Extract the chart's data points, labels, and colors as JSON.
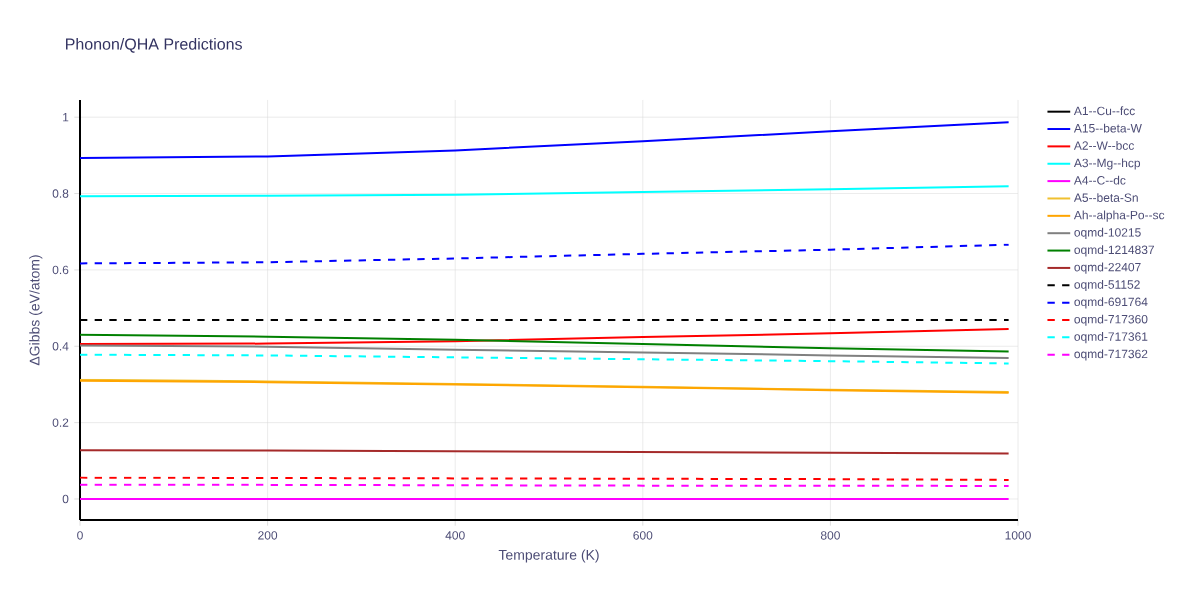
{
  "chart_data": {
    "type": "line",
    "title": "Phonon/QHA Predictions",
    "xlabel": "Temperature (K)",
    "ylabel": "ΔGibbs (eV/atom)",
    "x": [
      0,
      200,
      400,
      600,
      800,
      990
    ],
    "series": [
      {
        "name": "A1--Cu--fcc",
        "color": "#000000",
        "values": [
          null,
          null,
          null,
          null,
          null,
          null
        ]
      },
      {
        "name": "A15--beta-W",
        "color": "#0000ff",
        "values": [
          0.893,
          0.897,
          0.913,
          0.937,
          0.963,
          0.987
        ]
      },
      {
        "name": "A2--W--bcc",
        "color": "#ff0000",
        "values": [
          0.406,
          0.407,
          0.413,
          0.424,
          0.434,
          0.445
        ]
      },
      {
        "name": "A3--Mg--hcp",
        "color": "#00ffff",
        "values": [
          0.793,
          0.794,
          0.797,
          0.804,
          0.811,
          0.819
        ]
      },
      {
        "name": "A4--C--dc",
        "color": "#ff00ff",
        "values": [
          0,
          0,
          0,
          0,
          0,
          0
        ]
      },
      {
        "name": "A5--beta-Sn",
        "color": "#f0c030",
        "values": [
          0.312,
          0.308,
          0.301,
          0.294,
          0.286,
          0.28
        ]
      },
      {
        "name": "Ah--alpha-Po--sc",
        "color": "#ffa500",
        "values": [
          0.31,
          0.306,
          0.3,
          0.293,
          0.285,
          0.278
        ]
      },
      {
        "name": "oqmd-10215",
        "color": "#808080",
        "values": [
          0.402,
          0.399,
          0.391,
          0.384,
          0.376,
          0.369
        ]
      },
      {
        "name": "oqmd-1214837",
        "color": "#008000",
        "values": [
          0.43,
          0.425,
          0.417,
          0.406,
          0.395,
          0.386
        ]
      },
      {
        "name": "oqmd-22407",
        "color": "#a52a2a",
        "values": [
          0.128,
          0.127,
          0.125,
          0.123,
          0.121,
          0.119
        ]
      },
      {
        "name": "oqmd-51152",
        "color": "#000000",
        "line_style": "dashed",
        "values": [
          0.469,
          0.469,
          0.469,
          0.469,
          0.469,
          0.469
        ]
      },
      {
        "name": "oqmd-691764",
        "color": "#0000ff",
        "line_style": "dashed",
        "values": [
          0.617,
          0.62,
          0.63,
          0.642,
          0.653,
          0.666
        ]
      },
      {
        "name": "oqmd-717360",
        "color": "#ff0000",
        "line_style": "dashed",
        "values": [
          0.056,
          0.055,
          0.054,
          0.053,
          0.052,
          0.05
        ]
      },
      {
        "name": "oqmd-717361",
        "color": "#00ffff",
        "line_style": "dashed",
        "values": [
          0.378,
          0.376,
          0.371,
          0.366,
          0.361,
          0.355
        ]
      },
      {
        "name": "oqmd-717362",
        "color": "#ff00ff",
        "line_style": "dashed",
        "values": [
          0.037,
          0.037,
          0.036,
          0.035,
          0.035,
          0.034
        ]
      }
    ],
    "xlim": [
      0,
      1000
    ],
    "xticks": [
      0,
      200,
      400,
      600,
      800,
      1000
    ],
    "ylim": [
      -0.055,
      1.045
    ],
    "yticks": [
      0,
      0.2,
      0.4,
      0.6,
      0.8,
      1
    ],
    "grid": true,
    "legend": "top right",
    "marker": "none",
    "line_style": "solid"
  }
}
